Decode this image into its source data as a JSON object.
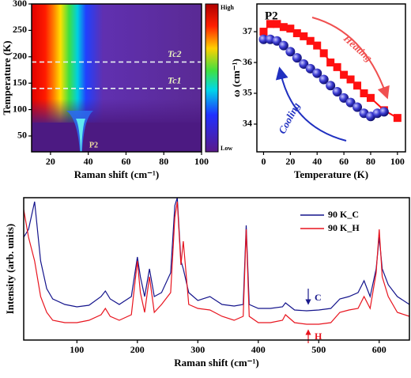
{
  "chart_data": [
    {
      "type": "heatmap",
      "xlabel": "Raman shift (cm⁻¹)",
      "ylabel": "Temperature (K)",
      "xlim": [
        10,
        100
      ],
      "xticks": [
        20,
        40,
        60,
        80,
        100
      ],
      "ylim": [
        20,
        300
      ],
      "yticks": [
        50,
        100,
        150,
        200,
        250,
        300
      ],
      "colorbar_labels": [
        "High",
        "Low"
      ],
      "reference_lines": [
        {
          "label": "Tc2",
          "value": 190
        },
        {
          "label": "Tc1",
          "value": 140
        }
      ],
      "annotation": "P2"
    },
    {
      "type": "line",
      "title": "P2",
      "xlabel": "Temperature (K)",
      "ylabel": "ω (cm⁻¹)",
      "xlim": [
        -5,
        106
      ],
      "xticks": [
        0,
        20,
        40,
        60,
        80,
        100
      ],
      "ylim": [
        33.1,
        37.9
      ],
      "yticks": [
        34,
        35,
        36,
        37
      ],
      "series": [
        {
          "name": "Heating",
          "color": "#ff1010",
          "marker": "square",
          "x": [
            0,
            5,
            10,
            15,
            20,
            25,
            30,
            35,
            40,
            45,
            50,
            55,
            60,
            65,
            70,
            75,
            80,
            90,
            100
          ],
          "values": [
            37.0,
            37.25,
            37.25,
            37.15,
            37.1,
            36.95,
            36.85,
            36.7,
            36.55,
            36.3,
            36.0,
            35.85,
            35.6,
            35.45,
            35.25,
            35.0,
            34.85,
            34.45,
            34.2
          ]
        },
        {
          "name": "Cooling",
          "color": "#1a1ac8",
          "marker": "circle",
          "x": [
            0,
            5,
            10,
            15,
            20,
            25,
            30,
            35,
            40,
            45,
            50,
            55,
            60,
            65,
            70,
            75,
            80,
            85,
            90
          ],
          "values": [
            36.75,
            36.75,
            36.7,
            36.55,
            36.35,
            36.15,
            35.95,
            35.8,
            35.65,
            35.45,
            35.25,
            35.05,
            34.85,
            34.7,
            34.55,
            34.35,
            34.25,
            34.35,
            34.4
          ]
        }
      ]
    },
    {
      "type": "line",
      "xlabel": "Raman shift (cm⁻¹)",
      "ylabel": "Intensity (arb. units)",
      "xlim": [
        12,
        650
      ],
      "xticks": [
        100,
        200,
        300,
        400,
        500,
        600
      ],
      "ylim": [
        0,
        180
      ],
      "series": [
        {
          "name": "90 K_C",
          "color": "#14148c",
          "label": "C",
          "x": [
            12,
            20,
            30,
            40,
            50,
            60,
            80,
            100,
            120,
            140,
            147,
            155,
            170,
            190,
            200,
            205,
            212,
            220,
            228,
            240,
            255,
            262,
            266,
            272,
            276,
            285,
            300,
            320,
            340,
            360,
            375,
            380,
            385,
            400,
            420,
            440,
            445,
            460,
            480,
            500,
            520,
            535,
            550,
            565,
            575,
            585,
            595,
            600,
            605,
            615,
            630,
            650
          ],
          "values": [
            130,
            140,
            175,
            100,
            65,
            52,
            45,
            42,
            44,
            55,
            62,
            52,
            45,
            55,
            105,
            80,
            55,
            90,
            55,
            60,
            85,
            170,
            180,
            100,
            90,
            60,
            50,
            55,
            45,
            43,
            45,
            145,
            45,
            40,
            40,
            42,
            47,
            38,
            37,
            38,
            40,
            52,
            55,
            60,
            75,
            55,
            90,
            130,
            90,
            70,
            55,
            45
          ]
        },
        {
          "name": "90 K_H",
          "color": "#e8141e",
          "label": "H",
          "x": [
            12,
            20,
            30,
            40,
            50,
            60,
            80,
            100,
            120,
            140,
            147,
            155,
            170,
            190,
            200,
            205,
            212,
            220,
            228,
            240,
            255,
            262,
            266,
            272,
            276,
            285,
            300,
            320,
            340,
            360,
            375,
            380,
            385,
            400,
            420,
            440,
            445,
            460,
            480,
            500,
            520,
            535,
            550,
            565,
            575,
            585,
            595,
            600,
            605,
            615,
            630,
            650
          ],
          "values": [
            165,
            130,
            100,
            55,
            35,
            25,
            22,
            22,
            25,
            32,
            40,
            30,
            25,
            32,
            100,
            60,
            35,
            80,
            35,
            45,
            60,
            155,
            175,
            95,
            125,
            45,
            40,
            38,
            30,
            25,
            30,
            140,
            30,
            22,
            22,
            25,
            32,
            22,
            20,
            20,
            22,
            35,
            38,
            40,
            55,
            40,
            85,
            140,
            80,
            55,
            35,
            30
          ]
        }
      ]
    }
  ]
}
